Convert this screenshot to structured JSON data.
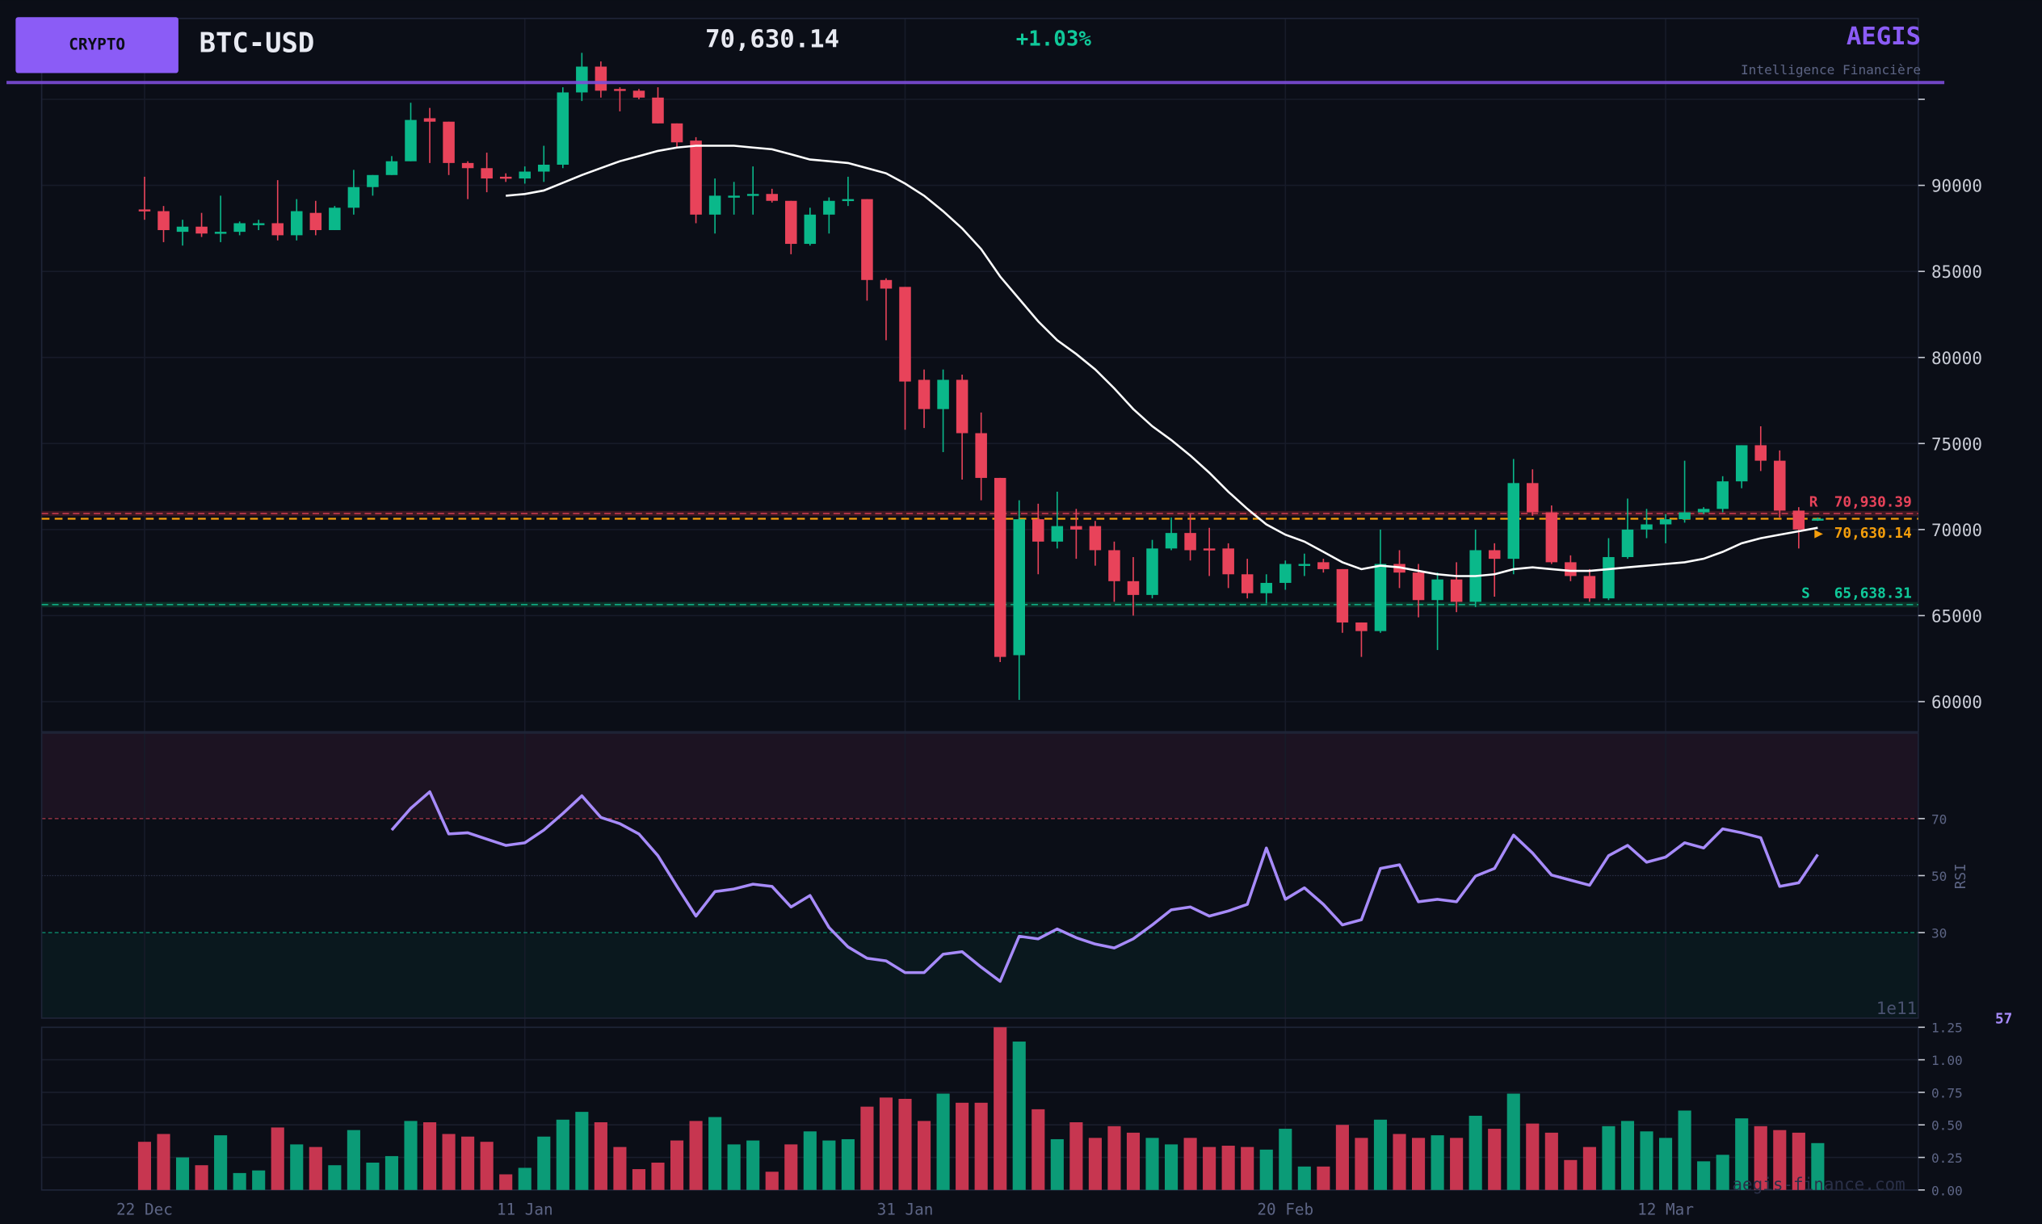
{
  "header": {
    "badge": "CRYPTO",
    "symbol": "BTC-USD",
    "price": "70,630.14",
    "change": "+1.03%",
    "brand": "AEGIS",
    "tagline": "Intelligence Financière"
  },
  "watermark": "aegis-finance.com",
  "colors": {
    "background": "#0b0e17",
    "accent": "#8b5cf6",
    "up": "#0ab88a",
    "down": "#e8435a",
    "volume_up": "#0b9b77",
    "volume_down": "#c73650",
    "ma": "#ffffff",
    "rsi": "#a78bfa",
    "resistance": "#e8435a",
    "support": "#10c99a",
    "last_price": "#f59e0b"
  },
  "chart_data": {
    "type": "candlestick",
    "symbol": "BTC-USD",
    "price_axis": {
      "ticks": [
        60000,
        65000,
        70000,
        75000,
        80000,
        85000,
        90000
      ],
      "unlabeled_ticks": [
        95000
      ],
      "range": [
        58250,
        99700
      ]
    },
    "x_ticks": [
      "22 Dec",
      "11 Jan",
      "31 Jan",
      "20 Feb",
      "12 Mar"
    ],
    "grid": true,
    "dates": [
      "22 Dec",
      "23 Dec",
      "24 Dec",
      "25 Dec",
      "26 Dec",
      "27 Dec",
      "28 Dec",
      "29 Dec",
      "30 Dec",
      "31 Dec",
      "1 Jan",
      "2 Jan",
      "3 Jan",
      "4 Jan",
      "5 Jan",
      "6 Jan",
      "7 Jan",
      "8 Jan",
      "9 Jan",
      "10 Jan",
      "11 Jan",
      "12 Jan",
      "13 Jan",
      "14 Jan",
      "15 Jan",
      "16 Jan",
      "17 Jan",
      "18 Jan",
      "19 Jan",
      "20 Jan",
      "21 Jan",
      "22 Jan",
      "23 Jan",
      "24 Jan",
      "25 Jan",
      "26 Jan",
      "27 Jan",
      "28 Jan",
      "29 Jan",
      "30 Jan",
      "31 Jan",
      "1 Feb",
      "2 Feb",
      "3 Feb",
      "4 Feb",
      "5 Feb",
      "6 Feb",
      "7 Feb",
      "8 Feb",
      "9 Feb",
      "10 Feb",
      "11 Feb",
      "12 Feb",
      "13 Feb",
      "14 Feb",
      "15 Feb",
      "16 Feb",
      "17 Feb",
      "18 Feb",
      "19 Feb",
      "20 Feb",
      "21 Feb",
      "22 Feb",
      "23 Feb",
      "24 Feb",
      "25 Feb",
      "26 Feb",
      "27 Feb",
      "28 Feb",
      "1 Mar",
      "2 Mar",
      "3 Mar",
      "4 Mar",
      "5 Mar",
      "6 Mar",
      "7 Mar",
      "8 Mar",
      "9 Mar",
      "10 Mar",
      "11 Mar",
      "12 Mar",
      "13 Mar",
      "14 Mar",
      "15 Mar",
      "16 Mar",
      "17 Mar",
      "18 Mar",
      "19 Mar",
      "20 Mar"
    ],
    "open": [
      88600,
      88500,
      87300,
      87600,
      87200,
      87300,
      87700,
      87800,
      87100,
      88400,
      87400,
      88700,
      89900,
      90600,
      91400,
      93900,
      93700,
      91300,
      91000,
      90500,
      90400,
      90800,
      91200,
      95400,
      96900,
      95600,
      95500,
      95100,
      93600,
      92600,
      88300,
      89300,
      89400,
      89500,
      89100,
      86600,
      88300,
      89100,
      89200,
      84500,
      84100,
      78700,
      77000,
      78700,
      75600,
      73000,
      62700,
      70600,
      69300,
      70200,
      70200,
      68800,
      67000,
      66200,
      68900,
      69800,
      68900,
      68900,
      67400,
      66300,
      66900,
      67900,
      68100,
      67700,
      64600,
      64100,
      68000,
      67500,
      65900,
      67100,
      65800,
      68800,
      68300,
      72700,
      71000,
      68100,
      67300,
      66000,
      68400,
      70000,
      70300,
      70600,
      71000,
      71200,
      72800,
      74900,
      74000,
      71100,
      70600
    ],
    "high": [
      90500,
      88800,
      88000,
      88400,
      89400,
      87900,
      88000,
      90300,
      89200,
      89100,
      88800,
      90900,
      90600,
      91700,
      94800,
      94500,
      93700,
      91400,
      91900,
      90700,
      91100,
      92300,
      95700,
      97700,
      97200,
      95700,
      95600,
      95700,
      93600,
      92800,
      90400,
      90200,
      91100,
      89800,
      89100,
      88700,
      89300,
      90500,
      89200,
      84600,
      84100,
      79300,
      79300,
      79000,
      76800,
      73000,
      71700,
      71500,
      72200,
      71200,
      70500,
      69300,
      68400,
      69400,
      70700,
      70900,
      70100,
      69200,
      68300,
      67400,
      68200,
      68600,
      68300,
      67700,
      64600,
      70000,
      68800,
      68000,
      67500,
      68100,
      70000,
      69200,
      74100,
      73500,
      71400,
      68500,
      67700,
      69500,
      71800,
      71200,
      70900,
      74000,
      71300,
      73100,
      74900,
      76000,
      74600,
      71300,
      70700
    ],
    "low": [
      88000,
      86700,
      86500,
      87000,
      86700,
      87100,
      87400,
      86800,
      86800,
      87100,
      87400,
      88300,
      89400,
      90600,
      91400,
      91300,
      90600,
      89200,
      89600,
      90200,
      90100,
      90200,
      91000,
      94900,
      95100,
      94300,
      95000,
      93600,
      92200,
      87800,
      87200,
      88300,
      88300,
      89000,
      86000,
      86500,
      87200,
      88800,
      83300,
      81000,
      75800,
      75900,
      74500,
      72900,
      71700,
      62300,
      60100,
      67400,
      68900,
      68300,
      67900,
      65800,
      65000,
      66000,
      68800,
      68200,
      67300,
      66600,
      66000,
      65700,
      66500,
      67300,
      67500,
      64000,
      62600,
      64000,
      66600,
      64900,
      63000,
      65200,
      65500,
      66100,
      67400,
      70800,
      68000,
      67000,
      65800,
      65900,
      68300,
      69500,
      69200,
      70400,
      70900,
      71000,
      72400,
      73400,
      70700,
      68900,
      70500
    ],
    "close": [
      88500,
      87400,
      87600,
      87200,
      87300,
      87800,
      87800,
      87100,
      88500,
      87400,
      88700,
      89900,
      90600,
      91400,
      93800,
      93700,
      91300,
      91000,
      90400,
      90400,
      90800,
      91200,
      95400,
      96900,
      95500,
      95500,
      95100,
      93600,
      92500,
      88300,
      89400,
      89400,
      89500,
      89100,
      86600,
      88300,
      89100,
      89200,
      84500,
      84000,
      78600,
      77000,
      78700,
      75600,
      73000,
      62600,
      70600,
      69300,
      70200,
      70000,
      68800,
      67000,
      66200,
      68900,
      69800,
      68800,
      68800,
      67400,
      66300,
      66900,
      68000,
      68000,
      67700,
      64600,
      64100,
      68000,
      67500,
      65900,
      67100,
      65800,
      68800,
      68300,
      72700,
      71000,
      68100,
      67300,
      66000,
      68400,
      70000,
      70300,
      70600,
      71000,
      71200,
      72800,
      74900,
      74000,
      71100,
      70000,
      70630
    ],
    "moving_average": [
      null,
      null,
      null,
      null,
      null,
      null,
      null,
      null,
      null,
      null,
      null,
      null,
      null,
      null,
      null,
      null,
      null,
      null,
      null,
      89400,
      89500,
      89700,
      90150,
      90600,
      91000,
      91400,
      91700,
      92000,
      92200,
      92300,
      92300,
      92300,
      92200,
      92100,
      91800,
      91500,
      91400,
      91300,
      91000,
      90700,
      90100,
      89400,
      88500,
      87500,
      86300,
      84700,
      83400,
      82100,
      81000,
      80200,
      79300,
      78200,
      77000,
      76000,
      75200,
      74300,
      73300,
      72200,
      71200,
      70300,
      69700,
      69300,
      68700,
      68100,
      67700,
      67900,
      67800,
      67600,
      67400,
      67300,
      67300,
      67400,
      67700,
      67800,
      67700,
      67600,
      67600,
      67700,
      67800,
      67900,
      68000,
      68100,
      68300,
      68700,
      69200,
      69500,
      69700,
      69900,
      70100
    ],
    "levels": {
      "resistance": {
        "tag": "R",
        "value": 70930.39,
        "label": "70,930.39"
      },
      "last_price": {
        "tag": "▶",
        "value": 70630.14,
        "label": "70,630.14"
      },
      "support": {
        "tag": "S",
        "value": 65638.31,
        "label": "65,638.31"
      }
    },
    "rsi": {
      "label": "RSI",
      "last_value_label": "57",
      "range": [
        0,
        100
      ],
      "ticks": [
        30,
        50,
        70
      ],
      "overbought": 70,
      "oversold": 30,
      "values": [
        null,
        null,
        null,
        null,
        null,
        null,
        null,
        null,
        null,
        null,
        null,
        null,
        null,
        66,
        73.6,
        79.4,
        64.6,
        65,
        62.8,
        60.6,
        61.5,
        66,
        71.8,
        78,
        70.4,
        68.2,
        64.6,
        57,
        46.2,
        35.8,
        44.4,
        45.3,
        47,
        46.2,
        39,
        43,
        31.8,
        25,
        21,
        20.1,
        16,
        16,
        22.4,
        23.3,
        17.9,
        12.9,
        28.7,
        27.8,
        31.3,
        28.2,
        26,
        24.6,
        27.8,
        32.7,
        38,
        39,
        35.8,
        37.6,
        39.9,
        59.7,
        41.7,
        45.7,
        39.9,
        32.7,
        34.5,
        52.5,
        53.8,
        40.8,
        41.7,
        40.8,
        49.8,
        52.5,
        64.2,
        57.9,
        50.2,
        48.4,
        46.6,
        57,
        60.6,
        54.7,
        56.5,
        61.5,
        59.7,
        66.4,
        65,
        63.3,
        46.2,
        47.5,
        57.4
      ]
    },
    "volume": {
      "multiplier_label": "1e11",
      "ticks": [
        "0.00",
        "0.25",
        "0.50",
        "0.75",
        "1.00",
        "1.25"
      ],
      "range": [
        0,
        1.25
      ],
      "values": [
        0.37,
        0.43,
        0.25,
        0.19,
        0.42,
        0.13,
        0.15,
        0.48,
        0.35,
        0.33,
        0.19,
        0.46,
        0.21,
        0.26,
        0.53,
        0.52,
        0.43,
        0.41,
        0.37,
        0.12,
        0.17,
        0.41,
        0.54,
        0.6,
        0.52,
        0.33,
        0.16,
        0.21,
        0.38,
        0.53,
        0.56,
        0.35,
        0.38,
        0.14,
        0.35,
        0.45,
        0.38,
        0.39,
        0.64,
        0.71,
        0.7,
        0.53,
        0.74,
        0.67,
        0.67,
        1.25,
        1.14,
        0.62,
        0.39,
        0.52,
        0.4,
        0.49,
        0.44,
        0.4,
        0.35,
        0.4,
        0.33,
        0.34,
        0.33,
        0.31,
        0.47,
        0.18,
        0.18,
        0.5,
        0.4,
        0.54,
        0.43,
        0.4,
        0.42,
        0.4,
        0.57,
        0.47,
        0.74,
        0.51,
        0.44,
        0.23,
        0.33,
        0.49,
        0.53,
        0.45,
        0.4,
        0.61,
        0.22,
        0.27,
        0.55,
        0.49,
        0.46,
        0.44,
        0.36
      ]
    }
  }
}
